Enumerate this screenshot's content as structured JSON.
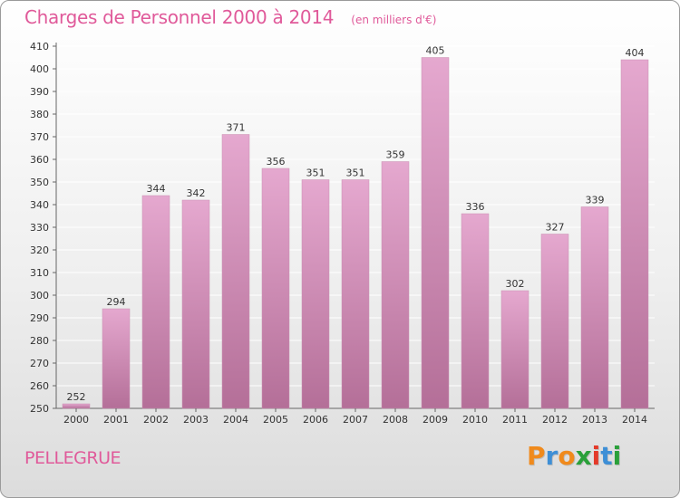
{
  "page": {
    "title": "Charges de Personnel 2000 à 2014",
    "subtitle": "(en milliers d'€)",
    "commune": "PELLEGRUE",
    "logo": "Proxiti"
  },
  "colors": {
    "accent": "#e05a9a",
    "bar_top": "#e5a8cf",
    "bar_bottom": "#b46f98",
    "logo_letters": [
      "#f08a1c",
      "#3e8fd6",
      "#f08a1c",
      "#2aa03a",
      "#e43a2a",
      "#3e8fd6",
      "#2aa03a"
    ]
  },
  "chart_data": {
    "type": "bar",
    "title": "Charges de Personnel 2000 à 2014",
    "subtitle": "(en milliers d'€)",
    "categories": [
      "2000",
      "2001",
      "2002",
      "2003",
      "2004",
      "2005",
      "2006",
      "2007",
      "2008",
      "2009",
      "2010",
      "2011",
      "2012",
      "2013",
      "2014"
    ],
    "values": [
      252,
      294,
      344,
      342,
      371,
      356,
      351,
      351,
      359,
      405,
      336,
      302,
      327,
      339,
      404
    ],
    "ylim": [
      250,
      410
    ],
    "yticks": [
      250,
      260,
      270,
      280,
      290,
      300,
      310,
      320,
      330,
      340,
      350,
      360,
      370,
      380,
      390,
      400,
      410
    ],
    "grid": true,
    "legend": "none"
  }
}
